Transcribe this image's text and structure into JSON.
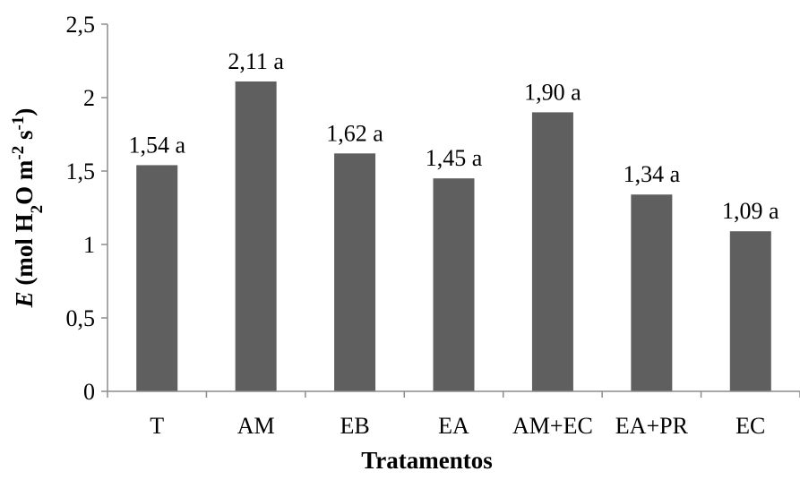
{
  "chart_data": {
    "type": "bar",
    "categories": [
      "T",
      "AM",
      "EB",
      "EA",
      "AM+EC",
      "EA+PR",
      "EC"
    ],
    "values": [
      1.54,
      2.11,
      1.62,
      1.45,
      1.9,
      1.34,
      1.09
    ],
    "data_labels": [
      "1,54 a",
      "2,11 a",
      "1,62 a",
      "1,45 a",
      "1,90 a",
      "1,34 a",
      "1,09 a"
    ],
    "xlabel": "Tratamentos",
    "ylabel": {
      "italic": "E",
      "pre": " (mol H",
      "sub": "2",
      "mid": "O m",
      "sup1": "-2",
      "post": " s",
      "sup2": "-1",
      "end": ")"
    },
    "ylim": [
      0,
      2.5
    ],
    "yticks": [
      0,
      0.5,
      1,
      1.5,
      2,
      2.5
    ],
    "ytick_labels": [
      "0",
      "0,5",
      "1",
      "1,5",
      "2",
      "2,5"
    ],
    "grid": false,
    "bar_color": "#5f5f5f",
    "axis_color": "#8c8c8c"
  }
}
